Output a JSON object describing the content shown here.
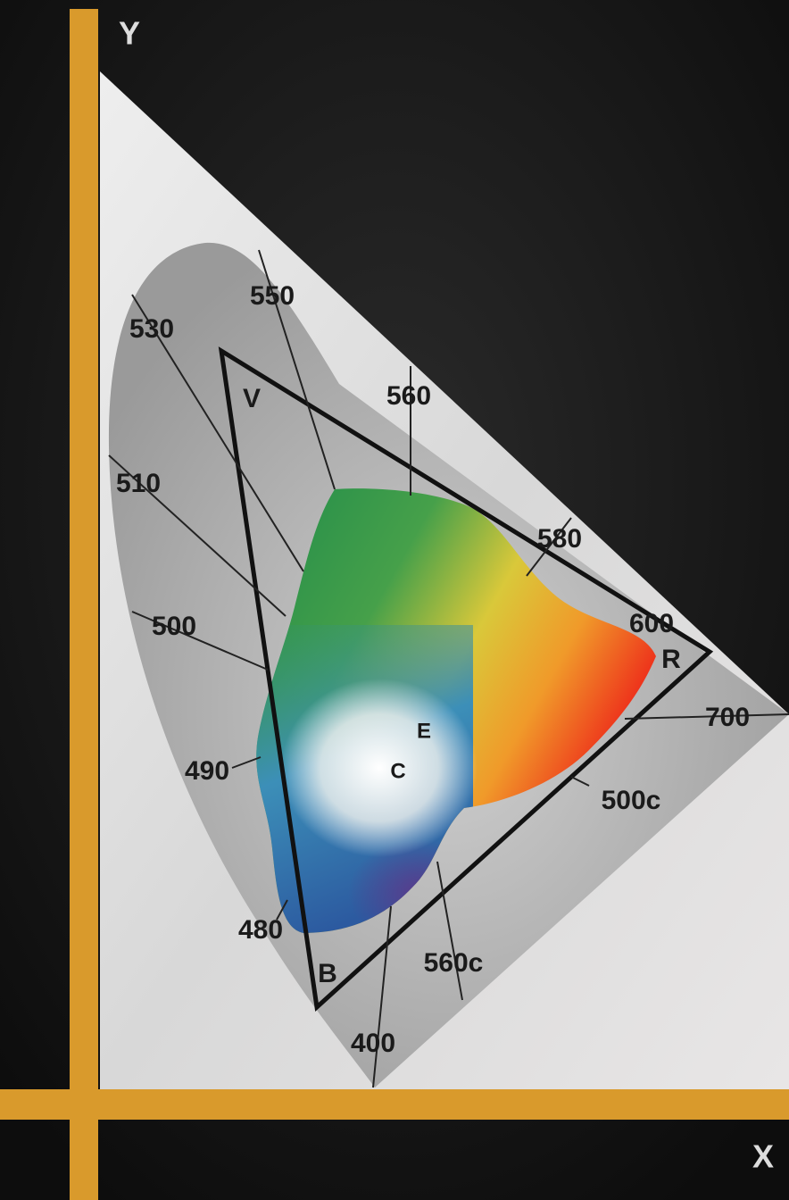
{
  "axes": {
    "y": "Y",
    "x": "X"
  },
  "wavelength_labels": [
    "550",
    "530",
    "560",
    "510",
    "580",
    "600",
    "500",
    "700",
    "490",
    "500c",
    "480",
    "560c",
    "400"
  ],
  "primaries": {
    "v": "V",
    "r": "R",
    "b": "B"
  },
  "points": {
    "e": "E",
    "c": "C"
  }
}
